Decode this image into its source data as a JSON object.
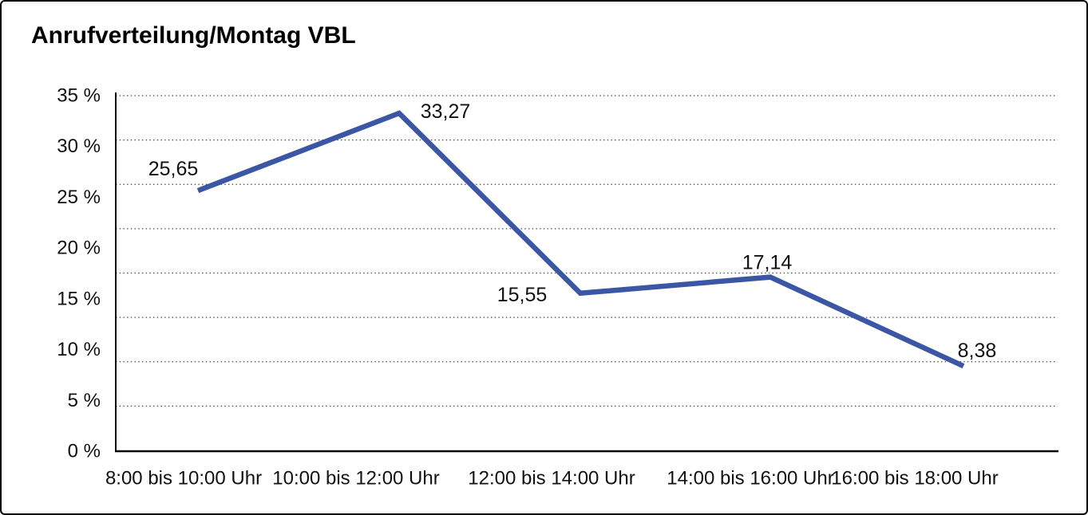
{
  "chart_data": {
    "type": "line",
    "title": "Anrufverteilung/Montag VBL",
    "categories": [
      "8:00 bis 10:00 Uhr",
      "10:00 bis 12:00 Uhr",
      "12:00 bis 14:00 Uhr",
      "14:00 bis 16:00 Uhr",
      "16:00 bis 18:00 Uhr"
    ],
    "values": [
      25.65,
      33.27,
      15.55,
      17.14,
      8.38
    ],
    "value_labels": [
      "25,65",
      "33,27",
      "15,55",
      "17,14",
      "8,38"
    ],
    "xlabel": "",
    "ylabel": "",
    "ylim": [
      0,
      35
    ],
    "y_tick_step": 5,
    "y_tick_labels_top_to_bottom": [
      "35 %",
      "30 %",
      "25 %",
      "20 %",
      "15 %",
      "10 %",
      "5 %",
      "0 %"
    ],
    "grid": "horizontal-dotted",
    "gridline_count": 8,
    "legend": "none",
    "line_color": "#3A56A4",
    "axis_color": "#000000",
    "text_color": "#111111"
  }
}
